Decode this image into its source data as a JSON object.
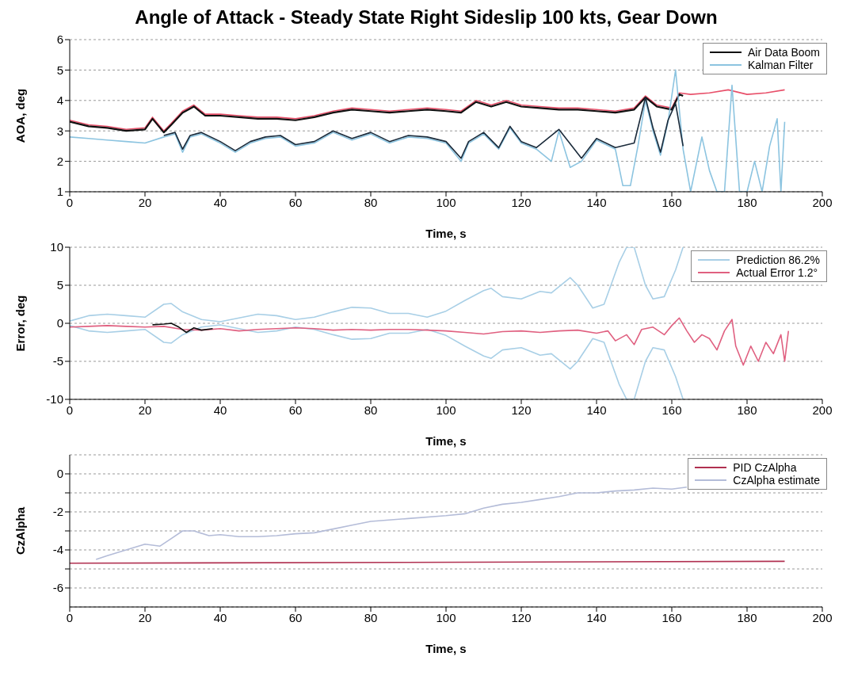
{
  "chart_data": [
    {
      "type": "line",
      "title": "Angle of Attack - Steady State Right Sideslip 100 kts, Gear Down",
      "xlabel": "Time, s",
      "ylabel": "AOA, deg",
      "xlim": [
        0,
        200
      ],
      "xticks": [
        0,
        20,
        40,
        60,
        80,
        100,
        120,
        140,
        160,
        180,
        200
      ],
      "ylim": [
        1,
        6
      ],
      "yticks": [
        1,
        2,
        3,
        4,
        5,
        6
      ],
      "grid": "y",
      "legend": "top right",
      "series": [
        {
          "color": "#e8506a",
          "x": [
            0,
            5,
            10,
            15,
            20,
            22,
            25,
            27,
            30,
            33,
            36,
            40,
            45,
            50,
            55,
            60,
            65,
            70,
            75,
            80,
            85,
            90,
            95,
            100,
            104,
            108,
            112,
            116,
            120,
            125,
            130,
            135,
            140,
            145,
            150,
            153,
            156,
            160,
            162,
            165,
            170,
            175,
            180,
            185,
            190
          ],
          "values": [
            3.35,
            3.2,
            3.15,
            3.05,
            3.1,
            3.45,
            3.0,
            3.25,
            3.65,
            3.85,
            3.55,
            3.55,
            3.5,
            3.45,
            3.45,
            3.4,
            3.5,
            3.65,
            3.75,
            3.7,
            3.65,
            3.7,
            3.75,
            3.7,
            3.65,
            4.0,
            3.85,
            4.0,
            3.85,
            3.8,
            3.75,
            3.75,
            3.7,
            3.65,
            3.75,
            4.15,
            3.85,
            3.75,
            4.25,
            4.2,
            4.25,
            4.35,
            4.2,
            4.25,
            4.35
          ]
        },
        {
          "name": "Air Data Boom",
          "color": "#111111",
          "x": [
            0,
            5,
            10,
            15,
            20,
            22,
            25,
            27,
            30,
            33,
            36,
            40,
            45,
            50,
            55,
            60,
            65,
            70,
            75,
            80,
            85,
            90,
            95,
            100,
            104,
            108,
            112,
            116,
            120,
            125,
            130,
            135,
            140,
            145,
            150,
            153,
            156,
            160,
            162,
            163
          ],
          "values": [
            3.3,
            3.15,
            3.1,
            3.0,
            3.05,
            3.4,
            2.95,
            3.2,
            3.6,
            3.8,
            3.5,
            3.5,
            3.45,
            3.4,
            3.4,
            3.35,
            3.45,
            3.6,
            3.7,
            3.65,
            3.6,
            3.65,
            3.7,
            3.65,
            3.6,
            3.95,
            3.8,
            3.95,
            3.8,
            3.75,
            3.7,
            3.7,
            3.65,
            3.6,
            3.7,
            4.1,
            3.8,
            3.7,
            4.2,
            4.15
          ]
        },
        {
          "name": "Kalman Filter",
          "color": "#8cc4e0",
          "x": [
            0,
            5,
            10,
            15,
            20,
            25,
            28,
            30,
            32,
            35,
            40,
            44,
            48,
            52,
            56,
            60,
            65,
            70,
            75,
            80,
            85,
            90,
            95,
            100,
            104,
            106,
            110,
            114,
            117,
            120,
            124,
            128,
            130,
            133,
            136,
            140,
            145,
            147,
            149,
            151,
            153,
            155,
            157,
            159,
            161,
            163,
            165,
            168,
            170,
            172,
            174,
            176,
            178,
            180,
            182,
            184,
            186,
            188,
            189,
            190
          ],
          "values": [
            2.8,
            2.75,
            2.7,
            2.65,
            2.6,
            2.8,
            2.9,
            2.3,
            2.8,
            2.9,
            2.6,
            2.3,
            2.6,
            2.75,
            2.8,
            2.5,
            2.6,
            2.95,
            2.7,
            2.9,
            2.6,
            2.8,
            2.75,
            2.6,
            2.0,
            2.6,
            2.9,
            2.4,
            3.1,
            2.6,
            2.4,
            2.0,
            3.0,
            1.8,
            2.0,
            2.7,
            2.4,
            1.2,
            1.2,
            2.5,
            4.0,
            3.0,
            2.2,
            3.3,
            5.0,
            2.4,
            1.0,
            2.8,
            1.7,
            1.0,
            1.0,
            4.5,
            1.0,
            1.0,
            2.0,
            1.0,
            2.5,
            3.4,
            1.0,
            3.3
          ]
        },
        {
          "color": "#1a2a3a",
          "x": [
            25,
            28,
            30,
            32,
            35,
            40,
            44,
            48,
            52,
            56,
            60,
            65,
            70,
            75,
            80,
            85,
            90,
            95,
            100,
            104,
            106,
            110,
            114,
            117,
            120,
            124,
            130,
            136,
            140,
            145,
            150,
            153,
            155,
            157,
            159,
            161,
            163
          ],
          "values": [
            2.85,
            2.95,
            2.4,
            2.85,
            2.95,
            2.65,
            2.35,
            2.65,
            2.8,
            2.85,
            2.55,
            2.65,
            3.0,
            2.75,
            2.95,
            2.65,
            2.85,
            2.8,
            2.65,
            2.1,
            2.65,
            2.95,
            2.45,
            3.15,
            2.65,
            2.45,
            3.05,
            2.1,
            2.75,
            2.45,
            2.6,
            4.1,
            3.1,
            2.3,
            3.35,
            3.9,
            2.5
          ]
        }
      ]
    },
    {
      "type": "line",
      "xlabel": "Time, s",
      "ylabel": "Error, deg",
      "xlim": [
        0,
        200
      ],
      "xticks": [
        0,
        20,
        40,
        60,
        80,
        100,
        120,
        140,
        160,
        180,
        200
      ],
      "ylim": [
        -10,
        10
      ],
      "yticks": [
        -10,
        -5,
        0,
        5,
        10
      ],
      "grid": "y",
      "legend": "top right",
      "series": [
        {
          "name": "Prediction 86.2%",
          "color": "#a8cfe6",
          "x": [
            0,
            5,
            10,
            15,
            20,
            25,
            27,
            30,
            35,
            40,
            45,
            50,
            55,
            60,
            65,
            70,
            75,
            80,
            85,
            90,
            95,
            100,
            105,
            110,
            112,
            115,
            120,
            125,
            128,
            133,
            135,
            139,
            142,
            146,
            148,
            150,
            153,
            155,
            158,
            161,
            163
          ],
          "values": [
            0.3,
            1.0,
            1.2,
            1.0,
            0.8,
            2.5,
            2.6,
            1.5,
            0.5,
            0.2,
            0.7,
            1.2,
            1.0,
            0.5,
            0.8,
            1.5,
            2.1,
            2.0,
            1.3,
            1.3,
            0.8,
            1.6,
            3.0,
            4.3,
            4.6,
            3.5,
            3.2,
            4.2,
            4.0,
            6.0,
            5.0,
            2.0,
            2.5,
            8,
            10,
            10,
            5,
            3.2,
            3.5,
            7,
            10
          ]
        },
        {
          "color": "#a8cfe6",
          "x": [
            0,
            5,
            10,
            15,
            20,
            25,
            27,
            30,
            35,
            40,
            45,
            50,
            55,
            60,
            65,
            70,
            75,
            80,
            85,
            90,
            95,
            100,
            105,
            110,
            112,
            115,
            120,
            125,
            128,
            133,
            135,
            139,
            142,
            146,
            148,
            150,
            153,
            155,
            158,
            161,
            163
          ],
          "values": [
            -0.3,
            -1.0,
            -1.2,
            -1.0,
            -0.8,
            -2.5,
            -2.6,
            -1.5,
            -0.5,
            -0.2,
            -0.7,
            -1.2,
            -1.0,
            -0.5,
            -0.8,
            -1.5,
            -2.1,
            -2.0,
            -1.3,
            -1.3,
            -0.8,
            -1.6,
            -3.0,
            -4.3,
            -4.6,
            -3.5,
            -3.2,
            -4.2,
            -4.0,
            -6.0,
            -5.0,
            -2.0,
            -2.5,
            -8,
            -10,
            -10,
            -5,
            -3.2,
            -3.5,
            -7,
            -10
          ]
        },
        {
          "name": "Actual Error 1.2°",
          "color": "#e06080",
          "x": [
            0,
            5,
            10,
            15,
            20,
            25,
            30,
            35,
            40,
            45,
            50,
            55,
            60,
            65,
            70,
            75,
            80,
            85,
            90,
            95,
            100,
            105,
            110,
            115,
            120,
            125,
            130,
            135,
            140,
            143,
            145,
            148,
            150,
            152,
            155,
            158,
            160,
            162,
            164,
            166,
            168,
            170,
            172,
            174,
            176,
            177,
            179,
            181,
            183,
            185,
            187,
            189,
            190,
            191
          ],
          "values": [
            -0.5,
            -0.4,
            -0.3,
            -0.4,
            -0.5,
            -0.4,
            -0.8,
            -0.9,
            -0.7,
            -1.0,
            -0.8,
            -0.7,
            -0.6,
            -0.7,
            -0.9,
            -0.8,
            -0.9,
            -0.8,
            -0.8,
            -0.9,
            -1.0,
            -1.2,
            -1.4,
            -1.1,
            -1.0,
            -1.2,
            -1.0,
            -0.9,
            -1.3,
            -1.0,
            -2.3,
            -1.5,
            -2.8,
            -0.8,
            -0.5,
            -1.5,
            -0.3,
            0.7,
            -1.0,
            -2.5,
            -1.5,
            -2.0,
            -3.5,
            -1.0,
            0.5,
            -3.0,
            -5.5,
            -3.0,
            -5.0,
            -2.5,
            -4.0,
            -1.5,
            -5.0,
            -1.0
          ]
        },
        {
          "color": "#111111",
          "x": [
            22,
            25,
            27,
            29,
            31,
            33,
            35,
            38
          ],
          "values": [
            -0.2,
            -0.1,
            0.0,
            -0.5,
            -1.2,
            -0.6,
            -0.9,
            -0.7
          ]
        }
      ]
    },
    {
      "type": "line",
      "xlabel": "Time, s",
      "ylabel": "CzAlpha",
      "xlim": [
        0,
        200
      ],
      "xticks": [
        0,
        20,
        40,
        60,
        80,
        100,
        120,
        140,
        160,
        180,
        200
      ],
      "ylim": [
        -7,
        1
      ],
      "yticks": [
        -6,
        {
          "value": -5,
          "label": null
        },
        -4,
        {
          "value": -3,
          "label": null
        },
        -2,
        {
          "value": -1,
          "label": null
        },
        0
      ],
      "grid": "y",
      "legend": "top right",
      "series": [
        {
          "name": "PID CzAlpha",
          "color": "#b03050",
          "x": [
            0,
            190
          ],
          "values": [
            -4.7,
            -4.6
          ]
        },
        {
          "name": "CzAlpha estimate",
          "color": "#b4bcd8",
          "x": [
            7,
            10,
            15,
            20,
            24,
            27,
            30,
            33,
            37,
            40,
            45,
            50,
            55,
            60,
            65,
            70,
            75,
            80,
            90,
            100,
            105,
            110,
            115,
            120,
            125,
            130,
            135,
            140,
            145,
            150,
            155,
            160,
            164
          ],
          "values": [
            -4.5,
            -4.3,
            -4.0,
            -3.7,
            -3.8,
            -3.4,
            -3.0,
            -3.0,
            -3.25,
            -3.2,
            -3.3,
            -3.3,
            -3.25,
            -3.15,
            -3.1,
            -2.9,
            -2.7,
            -2.5,
            -2.35,
            -2.2,
            -2.1,
            -1.8,
            -1.6,
            -1.5,
            -1.35,
            -1.2,
            -1.0,
            -1.0,
            -0.9,
            -0.85,
            -0.75,
            -0.8,
            -0.7
          ]
        }
      ]
    }
  ]
}
